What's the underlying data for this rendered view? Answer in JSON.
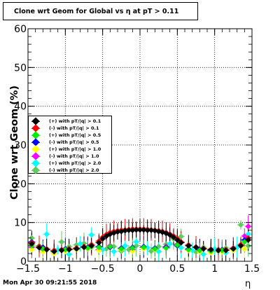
{
  "window": {
    "title": "Clone wrt Geom for Global vs   η at pT > 0.11",
    "timestamp": "Mon Apr 30 09:21:55 2018"
  },
  "chart_data": {
    "type": "scatter",
    "title": "Clone wrt Geom for Global vs   η at pT > 0.11",
    "xlabel": "η",
    "ylabel": "Clone wrt Geom (%)",
    "xlim": [
      -1.5,
      1.5
    ],
    "ylim": [
      0,
      60
    ],
    "x_ticks": [
      "-1.5",
      "-1",
      "-0.5",
      "0",
      "0.5",
      "1",
      "1.5"
    ],
    "y_ticks": [
      "0",
      "10",
      "20",
      "30",
      "40",
      "50",
      "60"
    ],
    "grid": true,
    "legend_position": "left-middle",
    "series": [
      {
        "name": "(+) with pT/|q| > 0.1",
        "color": "#000000",
        "x": [
          -1.45,
          -1.35,
          -1.25,
          -1.15,
          -1.05,
          -0.95,
          -0.85,
          -0.75,
          -0.65,
          -0.55,
          -0.5,
          -0.45,
          -0.4,
          -0.35,
          -0.3,
          -0.25,
          -0.2,
          -0.15,
          -0.1,
          -0.05,
          0,
          0.05,
          0.1,
          0.15,
          0.2,
          0.25,
          0.3,
          0.35,
          0.4,
          0.45,
          0.5,
          0.55,
          0.65,
          0.75,
          0.85,
          0.95,
          1.05,
          1.15,
          1.25,
          1.35,
          1.45
        ],
        "y": [
          4.5,
          3.5,
          3,
          2.5,
          2.8,
          3,
          3.2,
          3.6,
          4,
          4.8,
          5.8,
          6.5,
          7,
          7.3,
          7.6,
          7.7,
          7.9,
          8,
          8,
          8.1,
          8.1,
          8.1,
          8,
          8,
          7.9,
          7.7,
          7.5,
          7.2,
          6.8,
          6.2,
          5.5,
          4.8,
          4,
          3.6,
          3.2,
          3,
          2.8,
          2.8,
          3.2,
          4,
          5.5
        ]
      },
      {
        "name": "(-) with pT/|q| > 0.1",
        "color": "#ff0000",
        "x": [
          -1.45,
          -1.35,
          -1.25,
          -1.15,
          -1.05,
          -0.95,
          -0.85,
          -0.75,
          -0.65,
          -0.55,
          -0.5,
          -0.45,
          -0.4,
          -0.35,
          -0.3,
          -0.25,
          -0.2,
          -0.15,
          -0.1,
          -0.05,
          0,
          0.05,
          0.1,
          0.15,
          0.2,
          0.25,
          0.3,
          0.35,
          0.4,
          0.45,
          0.5,
          0.55,
          0.65,
          0.75,
          0.85,
          0.95,
          1.05,
          1.15,
          1.25,
          1.35,
          1.45
        ],
        "y": [
          4.8,
          3.8,
          3.2,
          2.8,
          3,
          3.2,
          3.4,
          3.8,
          4.3,
          5.2,
          6.2,
          6.9,
          7.4,
          7.7,
          7.9,
          8,
          8.1,
          8.2,
          8.3,
          8.3,
          8.3,
          8.3,
          8.2,
          8.1,
          8,
          7.9,
          7.7,
          7.4,
          7,
          6.5,
          5.8,
          5,
          4.2,
          3.7,
          3.3,
          3.1,
          3,
          3,
          3.4,
          4.3,
          6
        ]
      },
      {
        "name": "(+) with pT/|q| > 0.5",
        "color": "#00ee00",
        "x": [
          -1.45,
          -1.3,
          -1.15,
          -1,
          -0.85,
          -0.7,
          -0.55,
          -0.4,
          -0.25,
          -0.1,
          0.05,
          0.2,
          0.35,
          0.5,
          0.65,
          0.8,
          0.95,
          1.1,
          1.25,
          1.4
        ],
        "y": [
          4,
          3.2,
          2.6,
          3,
          3.2,
          3.4,
          3.6,
          3.8,
          3.2,
          3.4,
          3.6,
          3.2,
          3.4,
          4.2,
          3,
          2.8,
          2.6,
          2.8,
          3.2,
          5
        ]
      },
      {
        "name": "(-) with pT/|q| > 0.5",
        "color": "#0000ff",
        "x": [
          -1.45,
          -1.3,
          -1.15,
          -1,
          -0.85,
          -0.7,
          -0.55,
          -0.4,
          -0.25,
          -0.1,
          0.05,
          0.2,
          0.35,
          0.5,
          0.65,
          0.8,
          0.95,
          1.1,
          1.25,
          1.4
        ],
        "y": [
          5,
          3.6,
          2.8,
          3.2,
          3.4,
          3.6,
          3.8,
          3.6,
          3.4,
          3.6,
          3.8,
          3.4,
          3.6,
          4,
          3.2,
          3,
          2.8,
          3,
          3.4,
          5.5
        ]
      },
      {
        "name": "(+) with pT/|q| > 1.0",
        "color": "#ffff00",
        "x": [
          -1.45,
          -1.3,
          -1.15,
          -1,
          -0.85,
          -0.7,
          -0.55,
          -0.4,
          -0.25,
          -0.1,
          0.05,
          0.2,
          0.35,
          0.5,
          0.65,
          0.8,
          0.95,
          1.1,
          1.25,
          1.4
        ],
        "y": [
          3,
          2.4,
          2,
          2.6,
          3,
          3.2,
          2.8,
          3.6,
          3,
          2.6,
          3.2,
          3,
          3.4,
          4,
          2.8,
          2.4,
          2.2,
          2.4,
          2.8,
          3.2
        ]
      },
      {
        "name": "(-) with pT/|q| > 1.0",
        "color": "#ff00ff",
        "x": [
          -1.45,
          -1.3,
          -1.15,
          -1,
          -0.85,
          -0.7,
          -0.55,
          -0.4,
          -0.25,
          -0.1,
          0.05,
          0.2,
          0.35,
          0.5,
          0.65,
          0.8,
          0.95,
          1.1,
          1.25,
          1.4,
          1.45
        ],
        "y": [
          3.6,
          3,
          2.6,
          3,
          3.4,
          3.2,
          3,
          4,
          3.4,
          3,
          3.6,
          3.2,
          3.8,
          4.4,
          3,
          2.8,
          2.6,
          2.8,
          3.2,
          6.5,
          9
        ]
      },
      {
        "name": "(+) with pT/|q| > 2.0",
        "color": "#00ffff",
        "x": [
          -1.45,
          -1.25,
          -1.1,
          -0.95,
          -0.8,
          -0.65,
          -0.5,
          -0.35,
          -0.2,
          -0.05,
          0.1,
          0.25,
          0.4,
          0.55,
          0.7,
          0.85,
          1,
          1.15,
          1.3,
          1.45
        ],
        "y": [
          5,
          7,
          3,
          1.8,
          4.5,
          6.8,
          3,
          2.5,
          4,
          5,
          3.5,
          2.5,
          4.5,
          3.5,
          2.8,
          1.8,
          3.2,
          2.2,
          3.6,
          7
        ]
      },
      {
        "name": "(-) with pT/|q| > 2.0",
        "color": "#5ccc5c",
        "x": [
          -1.45,
          -1.35,
          -1.25,
          -1.15,
          -1.05,
          -0.95,
          -0.85,
          -0.75,
          -0.65,
          -0.55,
          -0.45,
          -0.35,
          -0.25,
          -0.15,
          -0.05,
          0.05,
          0.15,
          0.25,
          0.35,
          0.45,
          0.55,
          0.65,
          0.75,
          0.85,
          0.95,
          1.05,
          1.15,
          1.25,
          1.35,
          1.45
        ],
        "y": [
          6,
          4,
          3.2,
          2,
          5,
          3.8,
          4.2,
          4.6,
          3.6,
          2.8,
          3.2,
          3.8,
          2.6,
          3,
          4,
          3.6,
          2.6,
          3.8,
          4.4,
          5.8,
          6.4,
          3.2,
          2.4,
          3.6,
          2.8,
          2.6,
          3.4,
          2.8,
          9.4,
          4
        ]
      }
    ]
  }
}
